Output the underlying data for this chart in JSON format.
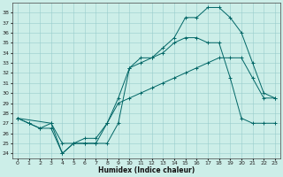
{
  "xlabel": "Humidex (Indice chaleur)",
  "bg_color": "#cceee8",
  "grid_color": "#99cccc",
  "line_color": "#006666",
  "xlim": [
    -0.5,
    23.5
  ],
  "ylim": [
    23.5,
    39.0
  ],
  "yticks": [
    24,
    25,
    26,
    27,
    28,
    29,
    30,
    31,
    32,
    33,
    34,
    35,
    36,
    37,
    38
  ],
  "xticks": [
    0,
    1,
    2,
    3,
    4,
    5,
    6,
    7,
    8,
    9,
    10,
    11,
    12,
    13,
    14,
    15,
    16,
    17,
    18,
    19,
    20,
    21,
    22,
    23
  ],
  "line1_x": [
    0,
    1,
    2,
    3,
    4,
    5,
    6,
    7,
    8,
    9,
    10,
    11,
    12,
    13,
    14,
    15,
    16,
    17,
    18,
    19,
    20,
    21,
    22,
    23
  ],
  "line1_y": [
    27.5,
    27.0,
    26.5,
    27.0,
    25.0,
    25.0,
    25.0,
    25.0,
    25.0,
    27.0,
    32.5,
    33.0,
    33.5,
    34.5,
    35.5,
    37.5,
    37.5,
    38.5,
    38.5,
    37.5,
    36.0,
    33.0,
    30.0,
    29.5
  ],
  "line2_x": [
    0,
    1,
    2,
    3,
    4,
    5,
    6,
    7,
    8,
    9,
    10,
    11,
    12,
    13,
    14,
    15,
    16,
    17,
    18,
    19,
    20,
    21,
    22,
    23
  ],
  "line2_y": [
    27.5,
    27.0,
    26.5,
    26.5,
    24.0,
    25.0,
    25.5,
    25.5,
    27.0,
    29.5,
    32.5,
    33.5,
    33.5,
    34.0,
    35.0,
    35.5,
    35.5,
    35.0,
    35.0,
    31.5,
    27.5,
    27.0,
    27.0,
    27.0
  ],
  "line3_x": [
    0,
    3,
    4,
    5,
    6,
    7,
    8,
    9,
    10,
    11,
    12,
    13,
    14,
    15,
    16,
    17,
    18,
    19,
    20,
    21,
    22,
    23
  ],
  "line3_y": [
    27.5,
    27.0,
    24.0,
    25.0,
    25.0,
    25.0,
    27.0,
    29.0,
    29.5,
    30.0,
    30.5,
    31.0,
    31.5,
    32.0,
    32.5,
    33.0,
    33.5,
    33.5,
    33.5,
    31.5,
    29.5,
    29.5
  ]
}
